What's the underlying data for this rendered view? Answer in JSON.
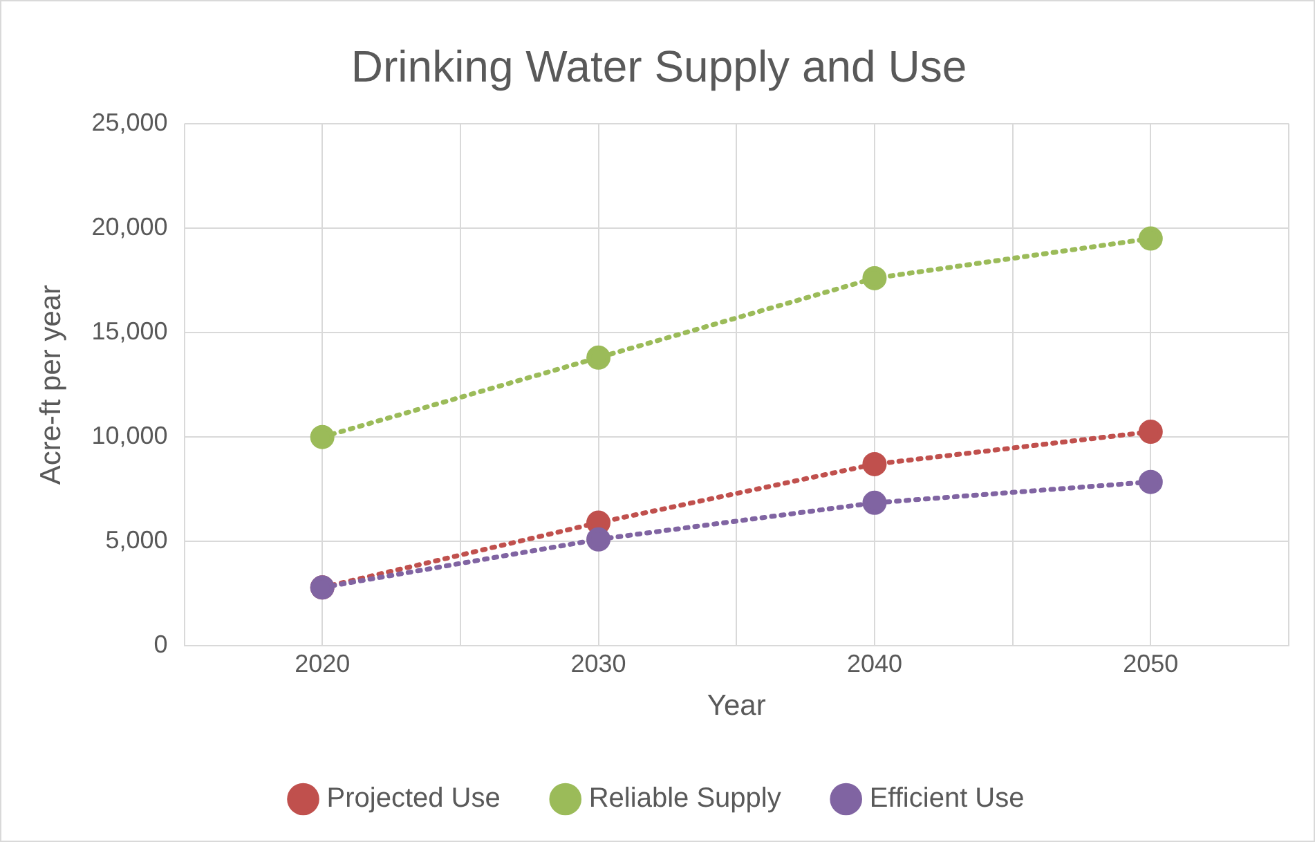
{
  "chart_data": {
    "type": "line",
    "title": "Drinking Water Supply and Use",
    "xlabel": "Year",
    "ylabel": "Acre-ft per year",
    "x": [
      2020,
      2030,
      2040,
      2050
    ],
    "series": [
      {
        "name": "Projected Use",
        "color": "#c0504d",
        "values": [
          2800,
          5900,
          8700,
          10250
        ]
      },
      {
        "name": "Reliable Supply",
        "color": "#9bbb59",
        "values": [
          10000,
          13800,
          17600,
          19500
        ]
      },
      {
        "name": "Efficient Use",
        "color": "#8064a2",
        "values": [
          2800,
          5100,
          6850,
          7850
        ]
      }
    ],
    "xlim": [
      2015,
      2055
    ],
    "xticks": [
      {
        "value": 2015,
        "label": null
      },
      2020,
      {
        "value": 2025,
        "label": null
      },
      2030,
      {
        "value": 2035,
        "label": null
      },
      2040,
      {
        "value": 2045,
        "label": null
      },
      2050,
      {
        "value": 2055,
        "label": null
      }
    ],
    "ylim": [
      0,
      25000
    ],
    "yticks": [
      {
        "value": 0,
        "label": "0"
      },
      {
        "value": 5000,
        "label": "5,000"
      },
      {
        "value": 10000,
        "label": "10,000"
      },
      {
        "value": 15000,
        "label": "15,000"
      },
      {
        "value": 20000,
        "label": "20,000"
      },
      {
        "value": 25000,
        "label": "25,000"
      }
    ],
    "grid": true,
    "legend": "bottom",
    "marker": "circle",
    "line_style": "dotted"
  }
}
